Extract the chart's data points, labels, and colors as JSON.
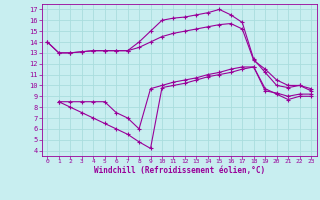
{
  "xlabel": "Windchill (Refroidissement éolien,°C)",
  "background_color": "#c8eef0",
  "grid_color": "#aadddd",
  "line_color": "#990099",
  "xlim": [
    -0.5,
    23.5
  ],
  "ylim": [
    3.5,
    17.5
  ],
  "xticks": [
    0,
    1,
    2,
    3,
    4,
    5,
    6,
    7,
    8,
    9,
    10,
    11,
    12,
    13,
    14,
    15,
    16,
    17,
    18,
    19,
    20,
    21,
    22,
    23
  ],
  "yticks": [
    4,
    5,
    6,
    7,
    8,
    9,
    10,
    11,
    12,
    13,
    14,
    15,
    16,
    17
  ],
  "curve1_x": [
    0,
    1,
    2,
    3,
    4,
    5,
    6,
    7,
    8,
    9,
    10,
    11,
    12,
    13,
    14,
    15,
    16,
    17,
    18,
    19,
    20,
    21,
    22,
    23
  ],
  "curve1_y": [
    14,
    13,
    13,
    13.1,
    13.2,
    13.2,
    13.2,
    13.2,
    14.0,
    15.0,
    16.0,
    16.2,
    16.3,
    16.5,
    16.7,
    17.0,
    16.5,
    15.8,
    12.4,
    11.2,
    10.0,
    9.8,
    10.0,
    9.5
  ],
  "curve2_x": [
    0,
    1,
    2,
    3,
    4,
    5,
    6,
    7,
    8,
    9,
    10,
    11,
    12,
    13,
    14,
    15,
    16,
    17,
    18,
    19,
    20,
    21,
    22,
    23
  ],
  "curve2_y": [
    14,
    13,
    13,
    13.1,
    13.2,
    13.2,
    13.2,
    13.2,
    13.5,
    14.0,
    14.5,
    14.8,
    15.0,
    15.2,
    15.4,
    15.6,
    15.7,
    15.2,
    12.3,
    11.5,
    10.5,
    10.0,
    10.0,
    9.7
  ],
  "curve3_x": [
    1,
    2,
    3,
    4,
    5,
    6,
    7,
    8,
    9,
    10,
    11,
    12,
    13,
    14,
    15,
    16,
    17,
    18,
    19,
    20,
    21,
    22,
    23
  ],
  "curve3_y": [
    8.5,
    8.5,
    8.5,
    8.5,
    8.5,
    7.5,
    7.0,
    6.0,
    9.7,
    10.0,
    10.3,
    10.5,
    10.7,
    11.0,
    11.2,
    11.5,
    11.7,
    11.7,
    9.5,
    9.3,
    9.0,
    9.2,
    9.2
  ],
  "curve4_x": [
    1,
    2,
    3,
    4,
    5,
    6,
    7,
    8,
    9,
    10,
    11,
    12,
    13,
    14,
    15,
    16,
    17,
    18,
    19,
    20,
    21,
    22,
    23
  ],
  "curve4_y": [
    8.5,
    8.0,
    7.5,
    7.0,
    6.5,
    6.0,
    5.5,
    4.8,
    4.2,
    9.8,
    10.0,
    10.2,
    10.5,
    10.8,
    11.0,
    11.2,
    11.5,
    11.7,
    9.7,
    9.2,
    8.7,
    9.0,
    9.0
  ]
}
